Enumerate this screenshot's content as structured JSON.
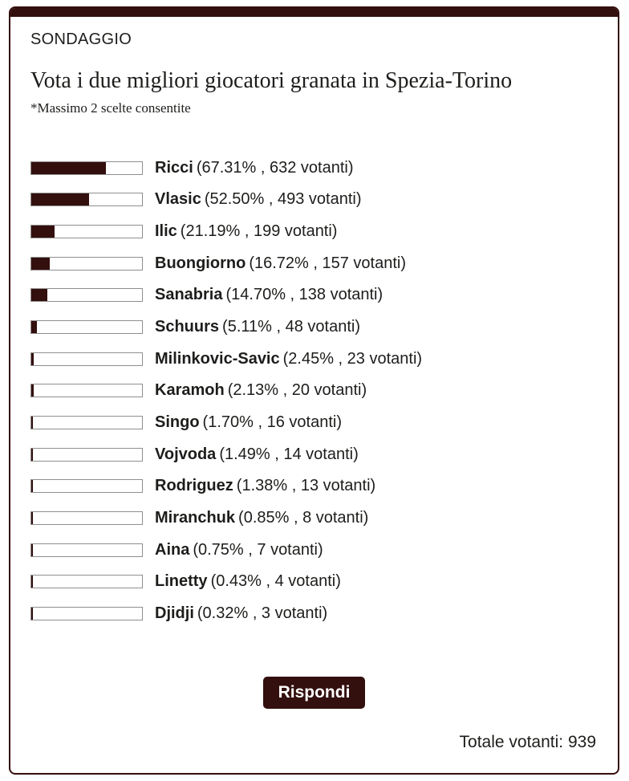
{
  "poll": {
    "kicker": "SONDAGGIO",
    "question": "Vota i due migliori giocatori granata in Spezia-Torino",
    "note": "*Massimo 2 scelte consentite",
    "options": [
      {
        "name": "Ricci",
        "percent": 67.31,
        "votes": 632,
        "detail": "(67.31% , 632 votanti)"
      },
      {
        "name": "Vlasic",
        "percent": 52.5,
        "votes": 493,
        "detail": "(52.50% , 493 votanti)"
      },
      {
        "name": "Ilic",
        "percent": 21.19,
        "votes": 199,
        "detail": "(21.19% , 199 votanti)"
      },
      {
        "name": "Buongiorno",
        "percent": 16.72,
        "votes": 157,
        "detail": "(16.72% , 157 votanti)"
      },
      {
        "name": "Sanabria",
        "percent": 14.7,
        "votes": 138,
        "detail": "(14.70% , 138 votanti)"
      },
      {
        "name": "Schuurs",
        "percent": 5.11,
        "votes": 48,
        "detail": "(5.11% , 48 votanti)"
      },
      {
        "name": "Milinkovic-Savic",
        "percent": 2.45,
        "votes": 23,
        "detail": "(2.45% , 23 votanti)"
      },
      {
        "name": "Karamoh",
        "percent": 2.13,
        "votes": 20,
        "detail": "(2.13% , 20 votanti)"
      },
      {
        "name": "Singo",
        "percent": 1.7,
        "votes": 16,
        "detail": "(1.70% , 16 votanti)"
      },
      {
        "name": "Vojvoda",
        "percent": 1.49,
        "votes": 14,
        "detail": "(1.49% , 14 votanti)"
      },
      {
        "name": "Rodriguez",
        "percent": 1.38,
        "votes": 13,
        "detail": "(1.38% , 13 votanti)"
      },
      {
        "name": "Miranchuk",
        "percent": 0.85,
        "votes": 8,
        "detail": "(0.85% , 8 votanti)"
      },
      {
        "name": "Aina",
        "percent": 0.75,
        "votes": 7,
        "detail": "(0.75% , 7 votanti)"
      },
      {
        "name": "Linetty",
        "percent": 0.43,
        "votes": 4,
        "detail": "(0.43% , 4 votanti)"
      },
      {
        "name": "Djidji",
        "percent": 0.32,
        "votes": 3,
        "detail": "(0.32% , 3 votanti)"
      }
    ],
    "submit_label": "Rispondi",
    "total_label": "Totale votanti: 939",
    "total_votes": 939
  },
  "colors": {
    "accent_maroon": "#330f0d",
    "text": "#1d1d1b",
    "bar_border": "#8f8f8f",
    "bar_background": "#ffffff",
    "button_text": "#ffffff"
  },
  "chart_data": {
    "type": "bar",
    "orientation": "horizontal",
    "title": "Vota i due migliori giocatori granata in Spezia-Torino",
    "categories": [
      "Ricci",
      "Vlasic",
      "Ilic",
      "Buongiorno",
      "Sanabria",
      "Schuurs",
      "Milinkovic-Savic",
      "Karamoh",
      "Singo",
      "Vojvoda",
      "Rodriguez",
      "Miranchuk",
      "Aina",
      "Linetty",
      "Djidji"
    ],
    "series": [
      {
        "name": "percent",
        "values": [
          67.31,
          52.5,
          21.19,
          16.72,
          14.7,
          5.11,
          2.45,
          2.13,
          1.7,
          1.49,
          1.38,
          0.85,
          0.75,
          0.43,
          0.32
        ]
      },
      {
        "name": "votanti",
        "values": [
          632,
          493,
          199,
          157,
          138,
          48,
          23,
          20,
          16,
          14,
          13,
          8,
          7,
          4,
          3
        ]
      }
    ],
    "xlabel": "",
    "ylabel": "",
    "xlim": [
      0,
      100
    ],
    "grid": false,
    "legend_position": "none",
    "total_votes": 939
  }
}
